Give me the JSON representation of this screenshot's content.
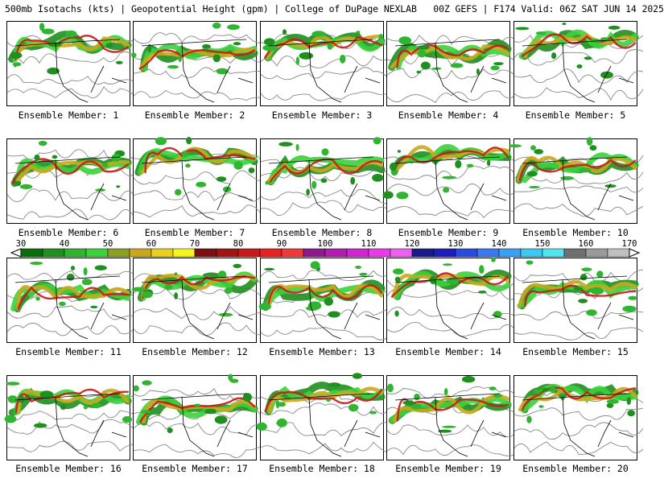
{
  "header": {
    "title": "500mb Isotachs (kts) | Geopotential Height (gpm) | College of DuPage NEXLAB   00Z GEFS | F174 Valid: 06Z SAT JUN 14 2025"
  },
  "panels": [
    {
      "label": "Ensemble Member: 1"
    },
    {
      "label": "Ensemble Member: 2"
    },
    {
      "label": "Ensemble Member: 3"
    },
    {
      "label": "Ensemble Member: 4"
    },
    {
      "label": "Ensemble Member: 5"
    },
    {
      "label": "Ensemble Member: 6"
    },
    {
      "label": "Ensemble Member: 7"
    },
    {
      "label": "Ensemble Member: 8"
    },
    {
      "label": "Ensemble Member: 9"
    },
    {
      "label": "Ensemble Member: 10"
    },
    {
      "label": "Ensemble Member: 11"
    },
    {
      "label": "Ensemble Member: 12"
    },
    {
      "label": "Ensemble Member: 13"
    },
    {
      "label": "Ensemble Member: 14"
    },
    {
      "label": "Ensemble Member: 15"
    },
    {
      "label": "Ensemble Member: 16"
    },
    {
      "label": "Ensemble Member: 17"
    },
    {
      "label": "Ensemble Member: 18"
    },
    {
      "label": "Ensemble Member: 19"
    },
    {
      "label": "Ensemble Member: 20"
    }
  ],
  "colorbar": {
    "labels": [
      "30",
      "40",
      "50",
      "60",
      "70",
      "80",
      "90",
      "100",
      "110",
      "120",
      "130",
      "140",
      "150",
      "160",
      "170"
    ],
    "colors": [
      "#0a6e0a",
      "#1f8f1f",
      "#2fb52f",
      "#3cd23c",
      "#8ea023",
      "#c9a81e",
      "#e8d01c",
      "#f5f51e",
      "#7a1010",
      "#a01414",
      "#c81a1a",
      "#e82020",
      "#f03a3a",
      "#8c1a8c",
      "#b01eb0",
      "#d026d0",
      "#e83ce8",
      "#f060f0",
      "#1a1a8c",
      "#1e1eb8",
      "#2a4ae0",
      "#3c78f0",
      "#3ca0f0",
      "#3cc8f0",
      "#50e6f0",
      "#707070",
      "#9a9a9a",
      "#c0c0c0"
    ]
  }
}
